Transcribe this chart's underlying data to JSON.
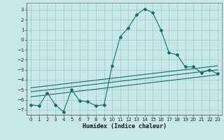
{
  "title": "",
  "xlabel": "Humidex (Indice chaleur)",
  "xlim": [
    -0.5,
    23.5
  ],
  "ylim": [
    -7.5,
    3.7
  ],
  "yticks": [
    3,
    2,
    1,
    0,
    -1,
    -2,
    -3,
    -4,
    -5,
    -6,
    -7
  ],
  "xticks": [
    0,
    1,
    2,
    3,
    4,
    5,
    6,
    7,
    8,
    9,
    10,
    11,
    12,
    13,
    14,
    15,
    16,
    17,
    18,
    19,
    20,
    21,
    22,
    23
  ],
  "bg_color": "#c8e8e8",
  "line_color": "#1a6b6b",
  "grid_color": "#99cccc",
  "main_line": {
    "x": [
      0,
      1,
      2,
      3,
      4,
      5,
      6,
      7,
      8,
      9,
      10,
      11,
      12,
      13,
      14,
      15,
      16,
      17,
      18,
      19,
      20,
      21,
      22,
      23
    ],
    "y": [
      -6.5,
      -6.6,
      -5.3,
      -6.5,
      -7.2,
      -5.0,
      -6.1,
      -6.2,
      -6.6,
      -6.5,
      -2.6,
      0.3,
      1.2,
      2.5,
      3.1,
      2.7,
      1.0,
      -1.3,
      -1.5,
      -2.7,
      -2.7,
      -3.3,
      -3.0,
      -3.4
    ]
  },
  "upper_ref_line": {
    "x": [
      0,
      23
    ],
    "y": [
      -4.8,
      -2.6
    ]
  },
  "middle_ref_line": {
    "x": [
      0,
      23
    ],
    "y": [
      -5.2,
      -3.0
    ]
  },
  "lower_ref_line": {
    "x": [
      0,
      23
    ],
    "y": [
      -5.7,
      -3.5
    ]
  }
}
